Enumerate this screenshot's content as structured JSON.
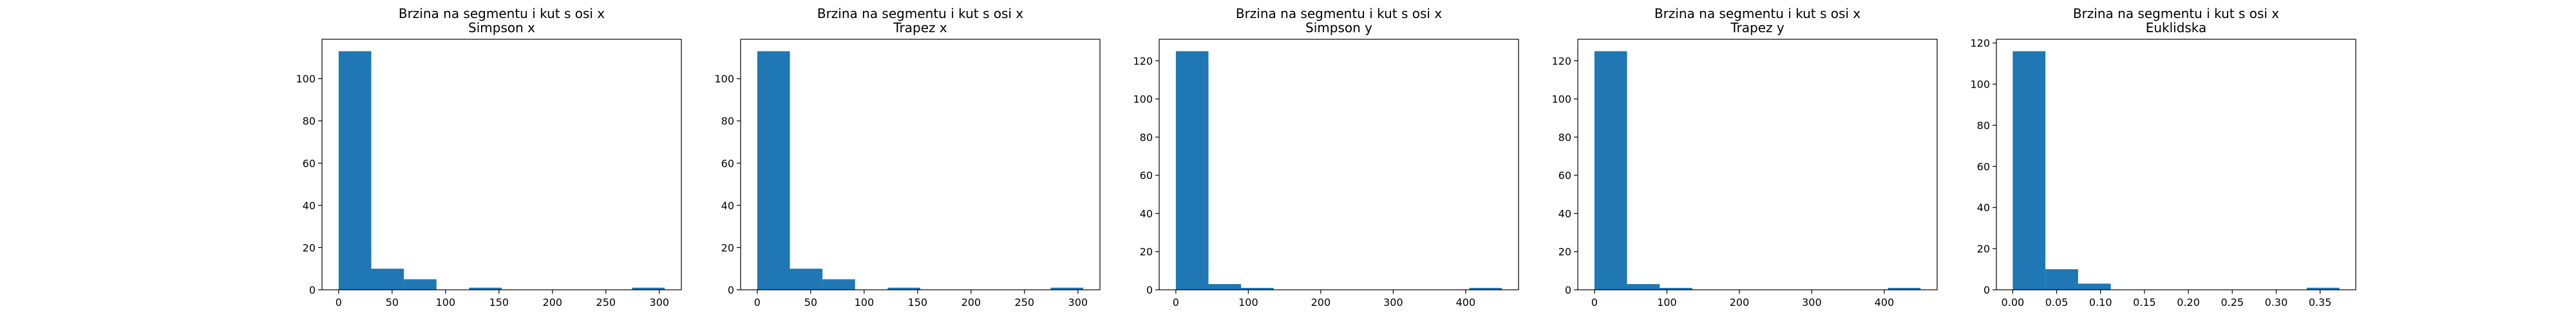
{
  "chart_data": [
    {
      "type": "bar",
      "title": "Brzina na segmentu i kut s osi x",
      "subtitle": "Simpson x",
      "xlim": [
        -15.6,
        320.6
      ],
      "ylim": [
        0,
        118.65
      ],
      "xticks": [
        0,
        50,
        100,
        150,
        200,
        250,
        300
      ],
      "xtick_labels": [
        "0",
        "50",
        "100",
        "150",
        "200",
        "250",
        "300"
      ],
      "yticks": [
        0,
        20,
        40,
        60,
        80,
        100
      ],
      "ytick_labels": [
        "0",
        "20",
        "40",
        "60",
        "80",
        "100"
      ],
      "bin_edges": [
        0,
        30.5,
        61,
        91.5,
        122,
        152.5,
        183,
        213.5,
        244,
        274.5,
        305
      ],
      "values": [
        113,
        10,
        5,
        0,
        1,
        0,
        0,
        0,
        0,
        1
      ],
      "grid": false
    },
    {
      "type": "bar",
      "title": "Brzina na segmentu i kut s osi x",
      "subtitle": "Trapez x",
      "xlim": [
        -15.6,
        320.6
      ],
      "ylim": [
        0,
        118.65
      ],
      "xticks": [
        0,
        50,
        100,
        150,
        200,
        250,
        300
      ],
      "xtick_labels": [
        "0",
        "50",
        "100",
        "150",
        "200",
        "250",
        "300"
      ],
      "yticks": [
        0,
        20,
        40,
        60,
        80,
        100
      ],
      "ytick_labels": [
        "0",
        "20",
        "40",
        "60",
        "80",
        "100"
      ],
      "bin_edges": [
        0,
        30.5,
        61,
        91.5,
        122,
        152.5,
        183,
        213.5,
        244,
        274.5,
        305
      ],
      "values": [
        113,
        10,
        5,
        0,
        1,
        0,
        0,
        0,
        0,
        1
      ],
      "grid": false
    },
    {
      "type": "bar",
      "title": "Brzina na segmentu i kut s osi x",
      "subtitle": "Simpson y",
      "xlim": [
        -23,
        473
      ],
      "ylim": [
        0,
        131.25
      ],
      "xticks": [
        0,
        100,
        200,
        300,
        400
      ],
      "xtick_labels": [
        "0",
        "100",
        "200",
        "300",
        "400"
      ],
      "yticks": [
        0,
        20,
        40,
        60,
        80,
        100,
        120
      ],
      "ytick_labels": [
        "0",
        "20",
        "40",
        "60",
        "80",
        "100",
        "120"
      ],
      "bin_edges": [
        0,
        45,
        90,
        135,
        180,
        225,
        270,
        315,
        360,
        405,
        450
      ],
      "values": [
        125,
        3,
        1,
        0,
        0,
        0,
        0,
        0,
        0,
        1
      ],
      "grid": false
    },
    {
      "type": "bar",
      "title": "Brzina na segmentu i kut s osi x",
      "subtitle": "Trapez y",
      "xlim": [
        -23,
        473
      ],
      "ylim": [
        0,
        131.25
      ],
      "xticks": [
        0,
        100,
        200,
        300,
        400
      ],
      "xtick_labels": [
        "0",
        "100",
        "200",
        "300",
        "400"
      ],
      "yticks": [
        0,
        20,
        40,
        60,
        80,
        100,
        120
      ],
      "ytick_labels": [
        "0",
        "20",
        "40",
        "60",
        "80",
        "100",
        "120"
      ],
      "bin_edges": [
        0,
        45,
        90,
        135,
        180,
        225,
        270,
        315,
        360,
        405,
        450
      ],
      "values": [
        125,
        3,
        1,
        0,
        0,
        0,
        0,
        0,
        0,
        1
      ],
      "grid": false
    },
    {
      "type": "bar",
      "title": "Brzina na segmentu i kut s osi x",
      "subtitle": "Euklidska",
      "xlim": [
        -0.0186,
        0.3906
      ],
      "ylim": [
        0,
        121.8
      ],
      "xticks": [
        0,
        0.05,
        0.1,
        0.15,
        0.2,
        0.25,
        0.3,
        0.35
      ],
      "xtick_labels": [
        "0.00",
        "0.05",
        "0.10",
        "0.15",
        "0.20",
        "0.25",
        "0.30",
        "0.35"
      ],
      "yticks": [
        0,
        20,
        40,
        60,
        80,
        100,
        120
      ],
      "ytick_labels": [
        "0",
        "20",
        "40",
        "60",
        "80",
        "100",
        "120"
      ],
      "bin_edges": [
        0,
        0.0372,
        0.0744,
        0.1116,
        0.1488,
        0.186,
        0.2232,
        0.2604,
        0.2976,
        0.3348,
        0.372
      ],
      "values": [
        116,
        10,
        3,
        0,
        0,
        0,
        0,
        0,
        0,
        1
      ],
      "grid": false
    }
  ],
  "style": {
    "bar_color": "#1f77b4",
    "axis_color": "#000000",
    "background": "#ffffff"
  }
}
